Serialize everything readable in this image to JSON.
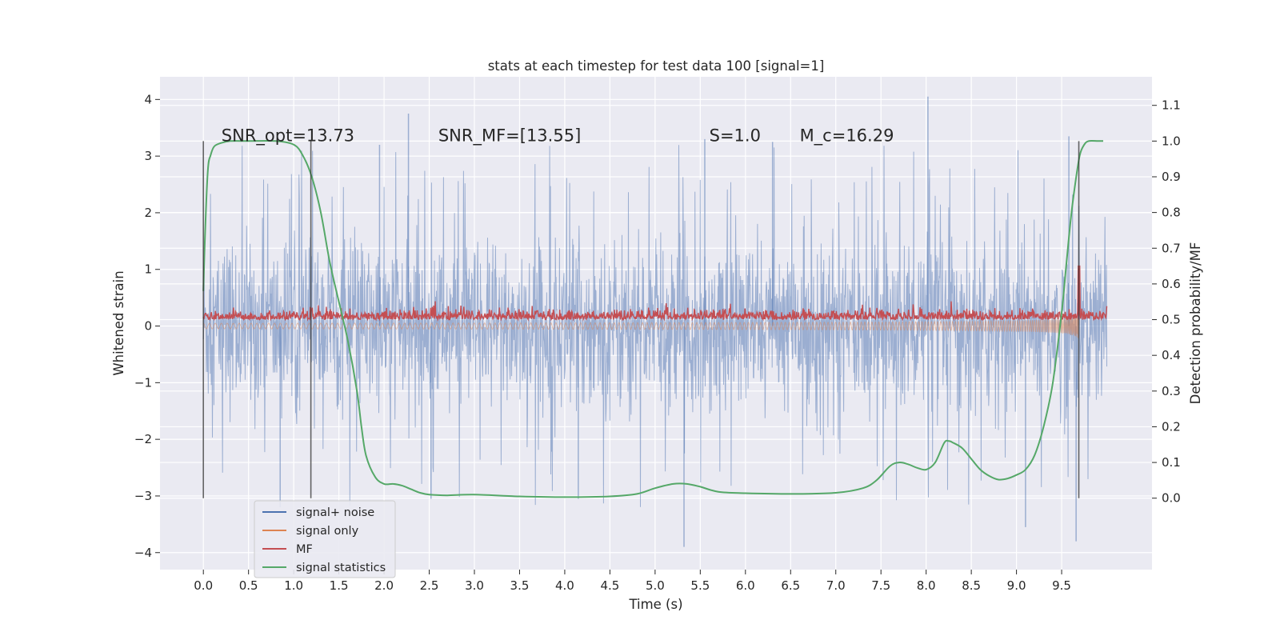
{
  "chart_data": {
    "type": "line",
    "title": "stats at each timestep for test data 100 [signal=1]",
    "xlabel": "Time (s)",
    "ylabel_left": "Whitened strain",
    "ylabel_right": "Detection probability/MF",
    "xlim": [
      -0.48,
      10.5
    ],
    "ylim_left": [
      -4.3,
      4.4
    ],
    "ylim_right": [
      -0.2,
      1.18
    ],
    "x_ticks": [
      "0.0",
      "0.5",
      "1.0",
      "1.5",
      "2.0",
      "2.5",
      "3.0",
      "3.5",
      "4.0",
      "4.5",
      "5.0",
      "5.5",
      "6.0",
      "6.5",
      "7.0",
      "7.5",
      "8.0",
      "8.5",
      "9.0",
      "9.5"
    ],
    "y_ticks_left": [
      "4",
      "3",
      "2",
      "1",
      "0",
      "−1",
      "−2",
      "−3",
      "−4"
    ],
    "y_ticks_right": [
      "1.1",
      "1.0",
      "0.9",
      "0.8",
      "0.7",
      "0.6",
      "0.5",
      "0.4",
      "0.3",
      "0.2",
      "0.1",
      "0.0"
    ],
    "grid": true,
    "legend_position": "bottom-left",
    "annotations": [
      {
        "text": "SNR_opt=13.73",
        "x": 0.2,
        "y_right": 1.0
      },
      {
        "text": "SNR_MF=[13.55]",
        "x": 2.6,
        "y_right": 1.0
      },
      {
        "text": "S=1.0",
        "x": 5.6,
        "y_right": 1.0
      },
      {
        "text": "M_c=16.29",
        "x": 6.6,
        "y_right": 1.0
      }
    ],
    "vertical_lines": [
      {
        "x": 0.0,
        "y_right": [
          0.0,
          1.0
        ]
      },
      {
        "x": 1.19,
        "y_right": [
          0.0,
          1.0
        ]
      },
      {
        "x": 9.69,
        "y_right": [
          0.0,
          1.0
        ]
      }
    ],
    "series": [
      {
        "name": "signal+ noise",
        "color": "#4c72b0",
        "axis": "left",
        "noise_envelope": {
          "x": [
            0.0,
            10.0
          ],
          "positive_peak_max": 4.05,
          "negative_peak_min": -3.8,
          "typical_range": [
            -1.2,
            1.3
          ]
        }
      },
      {
        "name": "signal only",
        "color": "#dd8452",
        "axis": "left",
        "chirp": {
          "x": [
            0.0,
            9.69
          ],
          "amplitude_start": 0.05,
          "amplitude_peak": 1.5,
          "merger_time": 9.69
        }
      },
      {
        "name": "MF",
        "color": "#c44e52",
        "axis": "right",
        "baseline": 0.5,
        "typical_max": 0.53,
        "peak": {
          "x": 9.69,
          "value": 0.65
        }
      },
      {
        "name": "signal statistics",
        "color": "#55a868",
        "axis": "right",
        "x": [
          0.0,
          0.02,
          0.05,
          0.08,
          0.12,
          0.2,
          0.3,
          0.5,
          0.8,
          1.0,
          1.1,
          1.2,
          1.3,
          1.4,
          1.5,
          1.6,
          1.7,
          1.75,
          1.8,
          1.9,
          2.0,
          2.1,
          2.2,
          2.3,
          2.4,
          2.5,
          2.7,
          3.0,
          3.5,
          4.0,
          4.5,
          4.8,
          5.0,
          5.2,
          5.35,
          5.5,
          5.7,
          6.0,
          6.5,
          7.0,
          7.3,
          7.45,
          7.6,
          7.7,
          7.8,
          7.9,
          8.0,
          8.1,
          8.2,
          8.25,
          8.3,
          8.4,
          8.5,
          8.6,
          8.7,
          8.8,
          8.9,
          9.0,
          9.1,
          9.2,
          9.3,
          9.4,
          9.5,
          9.55,
          9.6,
          9.65,
          9.7,
          9.75,
          9.8,
          9.9,
          9.96
        ],
        "values": [
          0.58,
          0.75,
          0.92,
          0.96,
          0.985,
          0.995,
          1.0,
          1.0,
          1.0,
          0.99,
          0.96,
          0.9,
          0.8,
          0.66,
          0.55,
          0.44,
          0.3,
          0.2,
          0.12,
          0.06,
          0.04,
          0.04,
          0.035,
          0.025,
          0.015,
          0.01,
          0.008,
          0.01,
          0.005,
          0.003,
          0.005,
          0.012,
          0.028,
          0.04,
          0.04,
          0.032,
          0.018,
          0.014,
          0.012,
          0.015,
          0.028,
          0.05,
          0.09,
          0.1,
          0.095,
          0.085,
          0.08,
          0.1,
          0.155,
          0.16,
          0.155,
          0.14,
          0.11,
          0.08,
          0.062,
          0.052,
          0.055,
          0.065,
          0.08,
          0.12,
          0.2,
          0.32,
          0.52,
          0.65,
          0.78,
          0.88,
          0.96,
          0.99,
          1.0,
          1.0,
          1.0
        ]
      }
    ]
  }
}
